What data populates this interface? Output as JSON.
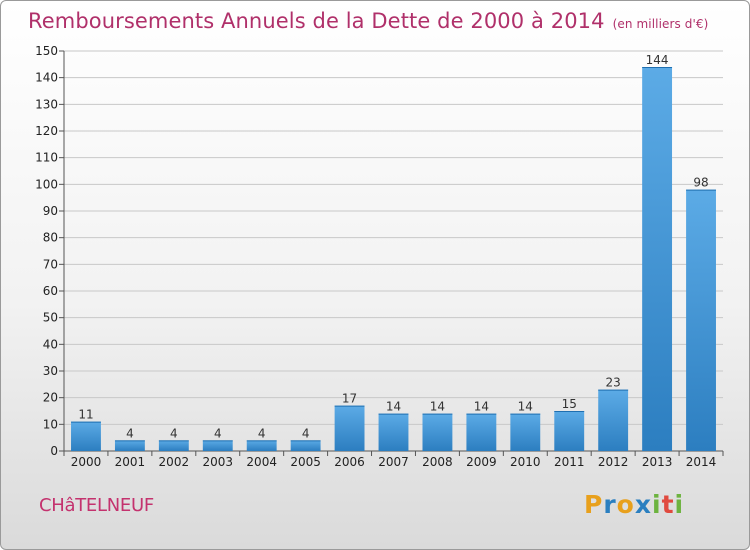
{
  "title": "Remboursements Annuels de la Dette de 2000 à 2014",
  "unit": "(en milliers d'€)",
  "commune": "CHâTELNEUF",
  "logo": {
    "letters": [
      "P",
      "r",
      "o",
      "x",
      "i",
      "t",
      "i"
    ],
    "colors": [
      "#e8a01c",
      "#2a7fc0",
      "#e8a01c",
      "#2a7fc0",
      "#6db33f",
      "#e04a3f",
      "#6db33f"
    ]
  },
  "colors": {
    "bar": "#3d93d6",
    "title": "#b0306a"
  },
  "chart_data": {
    "type": "bar",
    "title": "Remboursements Annuels de la Dette de 2000 à 2014",
    "categories": [
      "2000",
      "2001",
      "2002",
      "2003",
      "2004",
      "2005",
      "2006",
      "2007",
      "2008",
      "2009",
      "2010",
      "2011",
      "2012",
      "2013",
      "2014"
    ],
    "values": [
      11,
      4,
      4,
      4,
      4,
      4,
      17,
      14,
      14,
      14,
      14,
      15,
      23,
      144,
      98
    ],
    "ylim": [
      0,
      150
    ],
    "yticks": [
      0,
      10,
      20,
      30,
      40,
      50,
      60,
      70,
      80,
      90,
      100,
      110,
      120,
      130,
      140,
      150
    ],
    "grid": true
  }
}
